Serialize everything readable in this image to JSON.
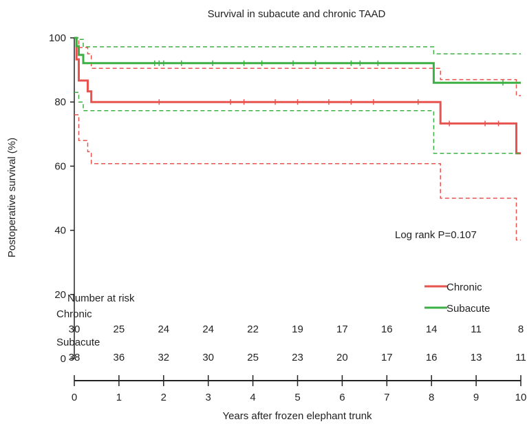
{
  "chart_data": {
    "type": "line",
    "title": "Survival in subacute and chronic TAAD",
    "xlabel": "Years after frozen elephant trunk",
    "ylabel": "Postoperative survival (%)",
    "xlim": [
      0,
      10
    ],
    "ylim": [
      0,
      100
    ],
    "xticks": [
      "0",
      "1",
      "2",
      "3",
      "4",
      "5",
      "6",
      "7",
      "8",
      "9",
      "10"
    ],
    "yticks": [
      "0",
      "20",
      "40",
      "60",
      "80",
      "100"
    ],
    "annotation": "Log rank P=0.107",
    "legend": {
      "placement": "lower-right"
    },
    "series": [
      {
        "name": "Chronic",
        "color": "#e8524f",
        "survival": [
          [
            0,
            100
          ],
          [
            0.05,
            93.3
          ],
          [
            0.1,
            86.7
          ],
          [
            0.3,
            83.3
          ],
          [
            0.38,
            80
          ],
          [
            8.2,
            80
          ],
          [
            8.2,
            73.3
          ],
          [
            9.9,
            73.3
          ],
          [
            9.9,
            64
          ],
          [
            10,
            64
          ]
        ],
        "ci_upper": [
          [
            0,
            100
          ],
          [
            0.1,
            97
          ],
          [
            0.3,
            95
          ],
          [
            0.38,
            90.5
          ],
          [
            8.2,
            90.5
          ],
          [
            8.2,
            87
          ],
          [
            9.9,
            87
          ],
          [
            9.9,
            82
          ],
          [
            10,
            82
          ]
        ],
        "ci_lower": [
          [
            0,
            76
          ],
          [
            0.1,
            68
          ],
          [
            0.3,
            64.5
          ],
          [
            0.38,
            60.8
          ],
          [
            8.2,
            60.8
          ],
          [
            8.2,
            50
          ],
          [
            9.9,
            50
          ],
          [
            9.9,
            37
          ],
          [
            10,
            37
          ]
        ],
        "censors": [
          [
            1.9,
            80
          ],
          [
            3.5,
            80
          ],
          [
            3.8,
            80
          ],
          [
            4.5,
            80
          ],
          [
            5,
            80
          ],
          [
            5.7,
            80
          ],
          [
            6.2,
            80
          ],
          [
            6.7,
            80
          ],
          [
            7.7,
            80
          ],
          [
            8.4,
            73.3
          ],
          [
            9.2,
            73.3
          ],
          [
            9.5,
            73.3
          ]
        ]
      },
      {
        "name": "Subacute",
        "color": "#3cb043",
        "survival": [
          [
            0,
            100
          ],
          [
            0.05,
            97.4
          ],
          [
            0.1,
            94.7
          ],
          [
            0.2,
            92.1
          ],
          [
            8.05,
            92.1
          ],
          [
            8.05,
            86
          ],
          [
            10,
            86
          ]
        ],
        "ci_upper": [
          [
            0,
            100
          ],
          [
            0.1,
            99.5
          ],
          [
            0.2,
            97.2
          ],
          [
            8.05,
            97.2
          ],
          [
            8.05,
            95
          ],
          [
            10,
            95
          ]
        ],
        "ci_lower": [
          [
            0,
            83
          ],
          [
            0.1,
            80
          ],
          [
            0.2,
            77.3
          ],
          [
            8.05,
            77.3
          ],
          [
            8.05,
            64
          ],
          [
            10,
            64
          ]
        ],
        "censors": [
          [
            1.8,
            92.1
          ],
          [
            1.9,
            92.1
          ],
          [
            2.0,
            92.1
          ],
          [
            2.4,
            92.1
          ],
          [
            3.1,
            92.1
          ],
          [
            3.8,
            92.1
          ],
          [
            4.2,
            92.1
          ],
          [
            4.9,
            92.1
          ],
          [
            5.4,
            92.1
          ],
          [
            6.2,
            92.1
          ],
          [
            6.4,
            92.1
          ],
          [
            6.8,
            92.1
          ],
          [
            9.6,
            86
          ]
        ]
      }
    ],
    "risk_table": {
      "title": "Number at risk",
      "groups": [
        {
          "name": "Chronic",
          "counts": [
            "30",
            "25",
            "24",
            "24",
            "22",
            "19",
            "17",
            "16",
            "14",
            "11",
            "8"
          ]
        },
        {
          "name": "Subacute",
          "counts": [
            "38",
            "36",
            "32",
            "30",
            "25",
            "23",
            "20",
            "17",
            "16",
            "13",
            "11"
          ]
        }
      ]
    }
  }
}
